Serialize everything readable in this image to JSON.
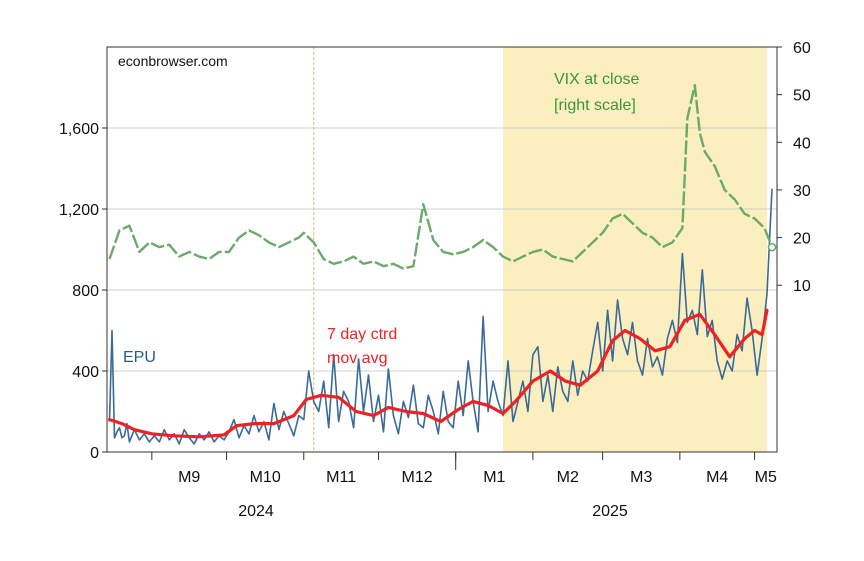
{
  "chart_data": {
    "type": "line",
    "source": "econbrowser.com",
    "left_axis": {
      "ticks": [
        0,
        400,
        800,
        1200,
        1600
      ],
      "tick_labels": [
        "0",
        "400",
        "800",
        "1,200",
        "1,600"
      ],
      "ylim": [
        0,
        2000
      ]
    },
    "right_axis": {
      "ticks": [
        10,
        20,
        30,
        40,
        50,
        60
      ],
      "tick_labels": [
        "10",
        "20",
        "30",
        "40",
        "50",
        "60"
      ],
      "ylim": [
        -25,
        60
      ]
    },
    "x_month_labels": [
      "M9",
      "M10",
      "M11",
      "M12",
      "M1",
      "M2",
      "M3",
      "M4",
      "M5"
    ],
    "x_year_labels": [
      "2024",
      "2025"
    ],
    "grid": true,
    "shaded_region": {
      "start": "2025-01-20",
      "end": "2025-05-06",
      "color": "#fbeebf"
    },
    "vertical_marker": {
      "date": "2024-11-05",
      "color": "#e8b868"
    },
    "annotations": {
      "vix": [
        "VIX at close",
        "[right scale]"
      ],
      "epu": "EPU",
      "mov_avg": [
        "7 day ctrd",
        "mov avg"
      ]
    },
    "colors": {
      "epu": "#3a6a9a",
      "mov_avg": "#ee2222",
      "vix": "#6aaa6a"
    },
    "series": [
      {
        "name": "EPU",
        "axis": "left",
        "points": [
          [
            "2024-08-15",
            150
          ],
          [
            "2024-08-16",
            600
          ],
          [
            "2024-08-17",
            70
          ],
          [
            "2024-08-18",
            100
          ],
          [
            "2024-08-19",
            120
          ],
          [
            "2024-08-20",
            70
          ],
          [
            "2024-08-21",
            80
          ],
          [
            "2024-08-22",
            140
          ],
          [
            "2024-08-23",
            50
          ],
          [
            "2024-08-25",
            110
          ],
          [
            "2024-08-27",
            60
          ],
          [
            "2024-08-29",
            90
          ],
          [
            "2024-08-31",
            50
          ],
          [
            "2024-09-02",
            80
          ],
          [
            "2024-09-04",
            50
          ],
          [
            "2024-09-06",
            110
          ],
          [
            "2024-09-08",
            60
          ],
          [
            "2024-09-10",
            90
          ],
          [
            "2024-09-12",
            40
          ],
          [
            "2024-09-14",
            110
          ],
          [
            "2024-09-16",
            70
          ],
          [
            "2024-09-18",
            40
          ],
          [
            "2024-09-20",
            90
          ],
          [
            "2024-09-22",
            60
          ],
          [
            "2024-09-24",
            100
          ],
          [
            "2024-09-26",
            50
          ],
          [
            "2024-09-28",
            80
          ],
          [
            "2024-09-30",
            60
          ],
          [
            "2024-10-02",
            100
          ],
          [
            "2024-10-04",
            160
          ],
          [
            "2024-10-06",
            70
          ],
          [
            "2024-10-08",
            130
          ],
          [
            "2024-10-10",
            90
          ],
          [
            "2024-10-12",
            180
          ],
          [
            "2024-10-14",
            100
          ],
          [
            "2024-10-16",
            150
          ],
          [
            "2024-10-18",
            60
          ],
          [
            "2024-10-20",
            240
          ],
          [
            "2024-10-22",
            110
          ],
          [
            "2024-10-24",
            200
          ],
          [
            "2024-10-26",
            140
          ],
          [
            "2024-10-28",
            80
          ],
          [
            "2024-10-30",
            180
          ],
          [
            "2024-11-01",
            160
          ],
          [
            "2024-11-03",
            400
          ],
          [
            "2024-11-05",
            250
          ],
          [
            "2024-11-07",
            200
          ],
          [
            "2024-11-09",
            350
          ],
          [
            "2024-11-11",
            120
          ],
          [
            "2024-11-13",
            480
          ],
          [
            "2024-11-15",
            150
          ],
          [
            "2024-11-17",
            300
          ],
          [
            "2024-11-19",
            250
          ],
          [
            "2024-11-21",
            120
          ],
          [
            "2024-11-23",
            460
          ],
          [
            "2024-11-25",
            200
          ],
          [
            "2024-11-27",
            380
          ],
          [
            "2024-11-29",
            150
          ],
          [
            "2024-12-01",
            280
          ],
          [
            "2024-12-03",
            100
          ],
          [
            "2024-12-05",
            410
          ],
          [
            "2024-12-07",
            180
          ],
          [
            "2024-12-09",
            90
          ],
          [
            "2024-12-11",
            250
          ],
          [
            "2024-12-13",
            170
          ],
          [
            "2024-12-15",
            330
          ],
          [
            "2024-12-17",
            140
          ],
          [
            "2024-12-19",
            120
          ],
          [
            "2024-12-21",
            280
          ],
          [
            "2024-12-23",
            200
          ],
          [
            "2024-12-25",
            90
          ],
          [
            "2024-12-27",
            300
          ],
          [
            "2024-12-29",
            150
          ],
          [
            "2024-12-31",
            120
          ],
          [
            "2025-01-02",
            350
          ],
          [
            "2025-01-04",
            180
          ],
          [
            "2025-01-06",
            450
          ],
          [
            "2025-01-08",
            250
          ],
          [
            "2025-01-10",
            100
          ],
          [
            "2025-01-12",
            670
          ],
          [
            "2025-01-14",
            200
          ],
          [
            "2025-01-16",
            350
          ],
          [
            "2025-01-18",
            250
          ],
          [
            "2025-01-20",
            180
          ],
          [
            "2025-01-22",
            450
          ],
          [
            "2025-01-24",
            150
          ],
          [
            "2025-01-26",
            250
          ],
          [
            "2025-01-28",
            350
          ],
          [
            "2025-01-30",
            200
          ],
          [
            "2025-02-01",
            480
          ],
          [
            "2025-02-03",
            520
          ],
          [
            "2025-02-05",
            250
          ],
          [
            "2025-02-07",
            380
          ],
          [
            "2025-02-09",
            200
          ],
          [
            "2025-02-11",
            420
          ],
          [
            "2025-02-13",
            300
          ],
          [
            "2025-02-15",
            250
          ],
          [
            "2025-02-17",
            450
          ],
          [
            "2025-02-19",
            280
          ],
          [
            "2025-02-21",
            400
          ],
          [
            "2025-02-23",
            350
          ],
          [
            "2025-02-25",
            500
          ],
          [
            "2025-02-27",
            640
          ],
          [
            "2025-03-01",
            400
          ],
          [
            "2025-03-03",
            700
          ],
          [
            "2025-03-05",
            450
          ],
          [
            "2025-03-07",
            750
          ],
          [
            "2025-03-09",
            560
          ],
          [
            "2025-03-11",
            480
          ],
          [
            "2025-03-13",
            640
          ],
          [
            "2025-03-15",
            450
          ],
          [
            "2025-03-17",
            380
          ],
          [
            "2025-03-19",
            560
          ],
          [
            "2025-03-21",
            420
          ],
          [
            "2025-03-23",
            470
          ],
          [
            "2025-03-25",
            380
          ],
          [
            "2025-03-27",
            560
          ],
          [
            "2025-03-29",
            650
          ],
          [
            "2025-03-31",
            540
          ],
          [
            "2025-04-02",
            980
          ],
          [
            "2025-04-04",
            640
          ],
          [
            "2025-04-06",
            700
          ],
          [
            "2025-04-08",
            580
          ],
          [
            "2025-04-10",
            900
          ],
          [
            "2025-04-12",
            570
          ],
          [
            "2025-04-14",
            650
          ],
          [
            "2025-04-16",
            450
          ],
          [
            "2025-04-18",
            360
          ],
          [
            "2025-04-20",
            450
          ],
          [
            "2025-04-22",
            400
          ],
          [
            "2025-04-24",
            580
          ],
          [
            "2025-04-26",
            500
          ],
          [
            "2025-04-28",
            760
          ],
          [
            "2025-04-30",
            600
          ],
          [
            "2025-05-02",
            380
          ],
          [
            "2025-05-04",
            560
          ],
          [
            "2025-05-06",
            780
          ],
          [
            "2025-05-08",
            1300
          ]
        ]
      },
      {
        "name": "7 day ctrd mov avg",
        "axis": "left",
        "points": [
          [
            "2024-08-15",
            160
          ],
          [
            "2024-08-20",
            140
          ],
          [
            "2024-08-25",
            110
          ],
          [
            "2024-09-01",
            90
          ],
          [
            "2024-09-10",
            80
          ],
          [
            "2024-09-20",
            75
          ],
          [
            "2024-09-30",
            85
          ],
          [
            "2024-10-05",
            130
          ],
          [
            "2024-10-12",
            140
          ],
          [
            "2024-10-20",
            140
          ],
          [
            "2024-10-28",
            180
          ],
          [
            "2024-11-02",
            260
          ],
          [
            "2024-11-08",
            280
          ],
          [
            "2024-11-15",
            270
          ],
          [
            "2024-11-22",
            200
          ],
          [
            "2024-11-29",
            180
          ],
          [
            "2024-12-05",
            220
          ],
          [
            "2024-12-12",
            200
          ],
          [
            "2024-12-19",
            190
          ],
          [
            "2024-12-26",
            150
          ],
          [
            "2025-01-02",
            210
          ],
          [
            "2025-01-08",
            250
          ],
          [
            "2025-01-14",
            230
          ],
          [
            "2025-01-20",
            190
          ],
          [
            "2025-01-25",
            250
          ],
          [
            "2025-02-01",
            350
          ],
          [
            "2025-02-08",
            400
          ],
          [
            "2025-02-14",
            350
          ],
          [
            "2025-02-20",
            330
          ],
          [
            "2025-02-27",
            400
          ],
          [
            "2025-03-05",
            550
          ],
          [
            "2025-03-10",
            600
          ],
          [
            "2025-03-16",
            560
          ],
          [
            "2025-03-22",
            500
          ],
          [
            "2025-03-28",
            520
          ],
          [
            "2025-04-03",
            650
          ],
          [
            "2025-04-09",
            680
          ],
          [
            "2025-04-15",
            580
          ],
          [
            "2025-04-21",
            470
          ],
          [
            "2025-04-27",
            560
          ],
          [
            "2025-05-01",
            600
          ],
          [
            "2025-05-04",
            580
          ],
          [
            "2025-05-06",
            700
          ]
        ]
      },
      {
        "name": "VIX at close",
        "axis": "right",
        "points": [
          [
            "2024-08-15",
            15.5
          ],
          [
            "2024-08-19",
            21.5
          ],
          [
            "2024-08-23",
            22.5
          ],
          [
            "2024-08-27",
            17
          ],
          [
            "2024-08-31",
            19
          ],
          [
            "2024-09-04",
            18
          ],
          [
            "2024-09-08",
            18.5
          ],
          [
            "2024-09-12",
            16
          ],
          [
            "2024-09-16",
            17
          ],
          [
            "2024-09-20",
            16
          ],
          [
            "2024-09-24",
            15.5
          ],
          [
            "2024-09-28",
            17
          ],
          [
            "2024-10-02",
            17
          ],
          [
            "2024-10-06",
            20
          ],
          [
            "2024-10-10",
            21.5
          ],
          [
            "2024-10-14",
            20.5
          ],
          [
            "2024-10-18",
            19
          ],
          [
            "2024-10-22",
            18
          ],
          [
            "2024-10-26",
            19
          ],
          [
            "2024-10-30",
            20
          ],
          [
            "2024-11-01",
            21
          ],
          [
            "2024-11-05",
            19
          ],
          [
            "2024-11-09",
            15.5
          ],
          [
            "2024-11-13",
            14.5
          ],
          [
            "2024-11-17",
            15
          ],
          [
            "2024-11-21",
            16
          ],
          [
            "2024-11-25",
            14.5
          ],
          [
            "2024-11-29",
            15
          ],
          [
            "2024-12-03",
            14
          ],
          [
            "2024-12-07",
            14.5
          ],
          [
            "2024-12-11",
            13.5
          ],
          [
            "2024-12-15",
            14
          ],
          [
            "2024-12-19",
            27
          ],
          [
            "2024-12-23",
            19.5
          ],
          [
            "2024-12-27",
            17
          ],
          [
            "2024-12-31",
            16.5
          ],
          [
            "2025-01-04",
            17
          ],
          [
            "2025-01-08",
            18
          ],
          [
            "2025-01-12",
            19.5
          ],
          [
            "2025-01-16",
            18
          ],
          [
            "2025-01-20",
            16
          ],
          [
            "2025-01-24",
            15
          ],
          [
            "2025-01-28",
            16
          ],
          [
            "2025-02-01",
            17
          ],
          [
            "2025-02-05",
            17.5
          ],
          [
            "2025-02-09",
            16
          ],
          [
            "2025-02-13",
            15.5
          ],
          [
            "2025-02-17",
            15
          ],
          [
            "2025-02-21",
            17
          ],
          [
            "2025-02-25",
            19
          ],
          [
            "2025-03-01",
            21
          ],
          [
            "2025-03-05",
            24
          ],
          [
            "2025-03-09",
            25
          ],
          [
            "2025-03-13",
            23
          ],
          [
            "2025-03-17",
            21
          ],
          [
            "2025-03-21",
            20
          ],
          [
            "2025-03-25",
            18
          ],
          [
            "2025-03-29",
            19
          ],
          [
            "2025-04-02",
            22
          ],
          [
            "2025-04-04",
            45
          ],
          [
            "2025-04-07",
            52
          ],
          [
            "2025-04-09",
            42
          ],
          [
            "2025-04-11",
            38
          ],
          [
            "2025-04-15",
            35
          ],
          [
            "2025-04-19",
            30
          ],
          [
            "2025-04-23",
            28
          ],
          [
            "2025-04-27",
            25
          ],
          [
            "2025-05-01",
            24
          ],
          [
            "2025-05-05",
            22
          ],
          [
            "2025-05-08",
            18
          ]
        ]
      }
    ],
    "last_vix_marker": [
      "2025-05-08",
      18
    ]
  }
}
